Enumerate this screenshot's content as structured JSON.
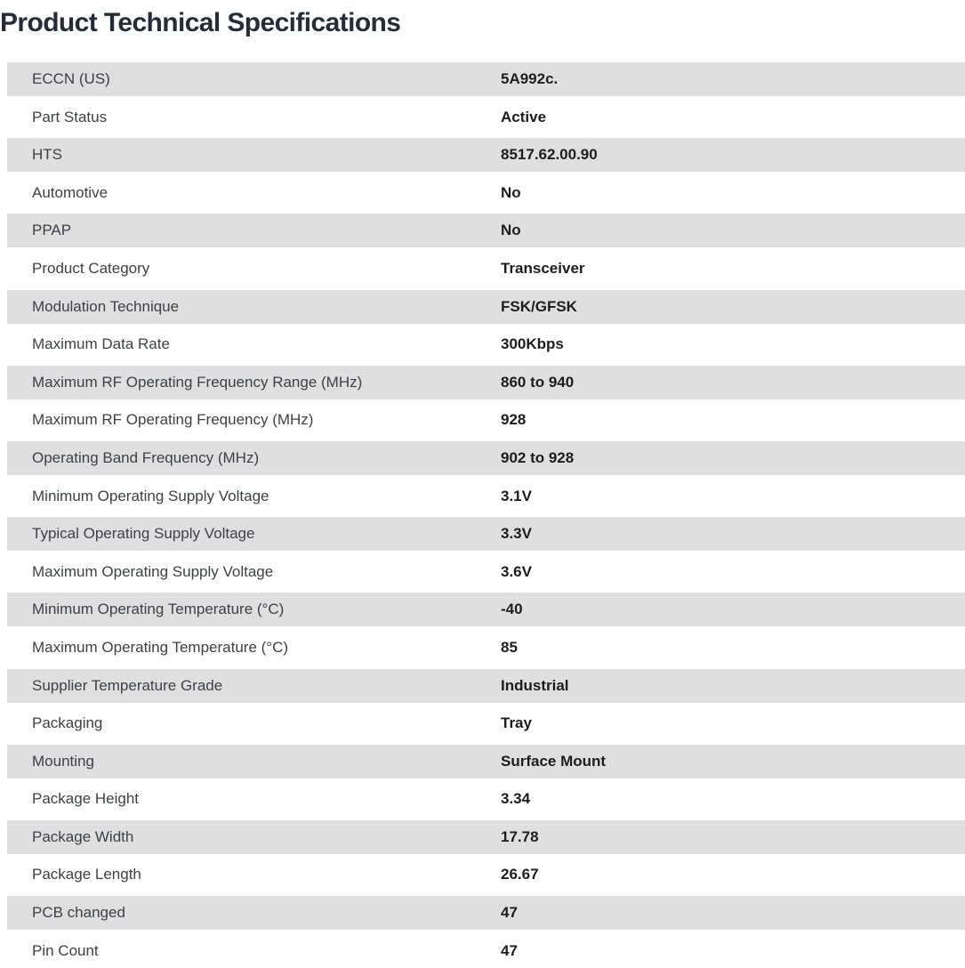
{
  "page": {
    "title": "Product Technical Specifications"
  },
  "colors": {
    "title_color": "#242d38",
    "row_alt_bg": "#dfdfdf",
    "label_color": "#3e4144",
    "value_color": "#1d1d1d"
  },
  "table": {
    "rows": [
      {
        "label": "ECCN (US)",
        "value": "5A992c."
      },
      {
        "label": "Part Status",
        "value": "Active"
      },
      {
        "label": "HTS",
        "value": "8517.62.00.90"
      },
      {
        "label": "Automotive",
        "value": "No"
      },
      {
        "label": "PPAP",
        "value": "No"
      },
      {
        "label": "Product Category",
        "value": "Transceiver"
      },
      {
        "label": "Modulation Technique",
        "value": "FSK/GFSK"
      },
      {
        "label": "Maximum Data Rate",
        "value": "300Kbps"
      },
      {
        "label": "Maximum RF Operating Frequency Range (MHz)",
        "value": "860 to 940"
      },
      {
        "label": "Maximum RF Operating Frequency (MHz)",
        "value": "928"
      },
      {
        "label": "Operating Band Frequency (MHz)",
        "value": "902 to 928"
      },
      {
        "label": "Minimum Operating Supply Voltage",
        "value": "3.1V"
      },
      {
        "label": "Typical Operating Supply Voltage",
        "value": "3.3V"
      },
      {
        "label": "Maximum Operating Supply Voltage",
        "value": "3.6V"
      },
      {
        "label": "Minimum Operating Temperature (°C)",
        "value": "-40"
      },
      {
        "label": "Maximum Operating Temperature (°C)",
        "value": "85"
      },
      {
        "label": "Supplier Temperature Grade",
        "value": "Industrial"
      },
      {
        "label": "Packaging",
        "value": "Tray"
      },
      {
        "label": "Mounting",
        "value": "Surface Mount"
      },
      {
        "label": "Package Height",
        "value": "3.34"
      },
      {
        "label": "Package Width",
        "value": "17.78"
      },
      {
        "label": "Package Length",
        "value": "26.67"
      },
      {
        "label": "PCB changed",
        "value": "47"
      },
      {
        "label": "Pin Count",
        "value": "47"
      }
    ]
  }
}
